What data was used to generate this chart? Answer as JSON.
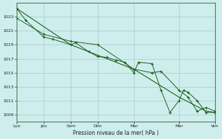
{
  "background_color": "#ceeeed",
  "grid_color": "#a8c8c8",
  "line_color": "#1a5c1a",
  "marker_color": "#1a5c1a",
  "xlabel": "Pression niveau de la mer( hPa )",
  "ylim": [
    1008.0,
    1025.0
  ],
  "yticks": [
    1009,
    1011,
    1013,
    1015,
    1017,
    1019,
    1021,
    1023
  ],
  "xlim": [
    0,
    22
  ],
  "xtick_positions": [
    0,
    3,
    6,
    9,
    13,
    18,
    22
  ],
  "xtick_labels": [
    "Lun",
    "Jeu",
    "Sam",
    "Dim",
    "Mar",
    "Mer",
    "Ven"
  ],
  "series1_x": [
    0,
    1,
    3,
    4,
    6,
    6.5,
    8,
    9,
    10,
    11,
    12,
    13,
    13.5,
    15,
    16,
    17,
    18,
    18.5,
    19,
    20,
    21,
    22
  ],
  "series1_y": [
    1024.2,
    1022.5,
    1020.1,
    1019.8,
    1019.0,
    1019.3,
    1018.0,
    1017.3,
    1017.2,
    1016.8,
    1016.5,
    1015.0,
    1016.5,
    1016.3,
    1012.5,
    1009.3,
    1011.0,
    1012.5,
    1012.2,
    1011.0,
    1009.3,
    1009.3
  ],
  "series2_x": [
    0,
    6,
    13,
    18,
    21,
    22
  ],
  "series2_y": [
    1024.2,
    1019.0,
    1015.5,
    1011.5,
    1009.5,
    1009.3
  ],
  "series3_x": [
    0,
    3,
    6,
    9,
    13,
    15,
    16,
    18,
    19,
    20,
    21,
    22
  ],
  "series3_y": [
    1022.8,
    1020.5,
    1019.5,
    1019.0,
    1015.5,
    1015.0,
    1015.2,
    1012.5,
    1011.5,
    1009.5,
    1010.0,
    1009.5
  ]
}
